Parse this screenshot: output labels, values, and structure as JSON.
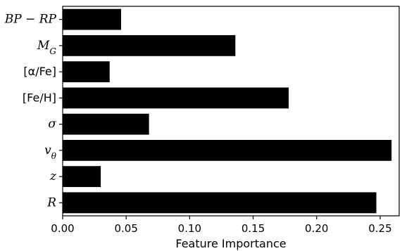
{
  "chart_data": {
    "type": "bar",
    "orientation": "horizontal",
    "categories": [
      "BP - RP",
      "M_G",
      "[α/Fe]",
      "[Fe/H]",
      "σ",
      "v_θ",
      "z",
      "R"
    ],
    "category_display": [
      {
        "text": "BP − RP",
        "sub": "",
        "style": "italic"
      },
      {
        "text": "M",
        "sub": "G",
        "style": "italic"
      },
      {
        "text": "[α/Fe]",
        "sub": "",
        "style": "upright"
      },
      {
        "text": "[Fe/H]",
        "sub": "",
        "style": "upright"
      },
      {
        "text": "σ",
        "sub": "",
        "style": "italic"
      },
      {
        "text": "v",
        "sub": "θ",
        "style": "italic"
      },
      {
        "text": "z",
        "sub": "",
        "style": "italic"
      },
      {
        "text": "R",
        "sub": "",
        "style": "italic"
      }
    ],
    "values": [
      0.046,
      0.136,
      0.037,
      0.178,
      0.068,
      0.259,
      0.03,
      0.247
    ],
    "xlim": [
      0,
      0.265
    ],
    "xticks": [
      0.0,
      0.05,
      0.1,
      0.15,
      0.2,
      0.25
    ],
    "xtick_labels": [
      "0.00",
      "0.05",
      "0.10",
      "0.15",
      "0.20",
      "0.25"
    ],
    "xlabel": "Feature Importance",
    "ylabel": "",
    "title": "",
    "grid": false,
    "bar_color": "#000000"
  }
}
